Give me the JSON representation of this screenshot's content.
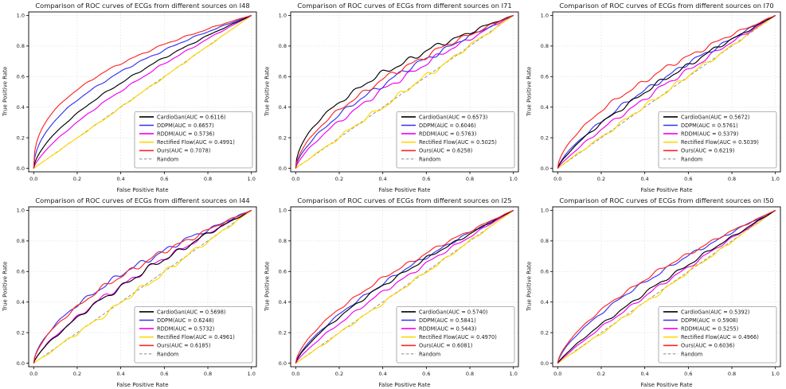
{
  "page": {
    "background": "#ffffff",
    "description": "2x3 grid of ROC curve comparison plots"
  },
  "palette": {
    "cardiogan": "#000000",
    "ddpm": "#3333f0",
    "rddm": "#f000f0",
    "rectified_flow": "#ffd700",
    "ours": "#ff2626",
    "random": "#8a8a8a",
    "grid": "#d0d0d0",
    "spine": "#000000"
  },
  "chart_data": [
    {
      "type": "line",
      "title": "Comparison of ROC curves of ECGs from different sources on I48",
      "xlabel": "False Positive Rate",
      "ylabel": "True Positive Rate",
      "xlim": [
        0.0,
        1.0
      ],
      "ylim": [
        0.0,
        1.0
      ],
      "xticks": [
        "0.0",
        "0.2",
        "0.4",
        "0.6",
        "0.8",
        "1.0"
      ],
      "yticks": [
        "0.0",
        "0.2",
        "0.4",
        "0.6",
        "0.8",
        "1.0"
      ],
      "grid": true,
      "legend_position": "lower right",
      "series": [
        {
          "name": "CardioGan",
          "label": "CardioGan(AUC = 0.6116)",
          "auc": 0.6116,
          "color": "#000000",
          "style": "solid"
        },
        {
          "name": "DDPM",
          "label": "DDPM(AUC = 0.6657)",
          "auc": 0.6657,
          "color": "#3333f0",
          "style": "solid"
        },
        {
          "name": "RDDM",
          "label": "RDDM(AUC = 0.5736)",
          "auc": 0.5736,
          "color": "#f000f0",
          "style": "solid"
        },
        {
          "name": "Rectified Flow",
          "label": "Rectified Flow(AUC = 0.4991)",
          "auc": 0.4991,
          "color": "#ffd700",
          "style": "solid"
        },
        {
          "name": "Ours",
          "label": "Ours(AUC = 0.7078)",
          "auc": 0.7078,
          "color": "#ff2626",
          "style": "solid"
        },
        {
          "name": "Random",
          "label": "Random",
          "auc": 0.5,
          "color": "#8a8a8a",
          "style": "dashed"
        }
      ]
    },
    {
      "type": "line",
      "title": "Comparison of ROC curves of ECGs from different sources on I71",
      "xlabel": "False Positive Rate",
      "ylabel": "True Positive Rate",
      "xlim": [
        0.0,
        1.0
      ],
      "ylim": [
        0.0,
        1.0
      ],
      "xticks": [
        "0.0",
        "0.2",
        "0.4",
        "0.6",
        "0.8",
        "1.0"
      ],
      "yticks": [
        "0.0",
        "0.2",
        "0.4",
        "0.6",
        "0.8",
        "1.0"
      ],
      "grid": true,
      "legend_position": "lower right",
      "series": [
        {
          "name": "CardioGan",
          "label": "CardioGan(AUC = 0.6573)",
          "auc": 0.6573,
          "color": "#000000",
          "style": "solid"
        },
        {
          "name": "DDPM",
          "label": "DDPM(AUC = 0.6046)",
          "auc": 0.6046,
          "color": "#3333f0",
          "style": "solid"
        },
        {
          "name": "RDDM",
          "label": "RDDM(AUC = 0.5763)",
          "auc": 0.5763,
          "color": "#f000f0",
          "style": "solid"
        },
        {
          "name": "Rectified Flow",
          "label": "Rectified Flow(AUC = 0.5025)",
          "auc": 0.5025,
          "color": "#ffd700",
          "style": "solid"
        },
        {
          "name": "Ours",
          "label": "Ours(AUC = 0.6258)",
          "auc": 0.6258,
          "color": "#ff2626",
          "style": "solid"
        },
        {
          "name": "Random",
          "label": "Random",
          "auc": 0.5,
          "color": "#8a8a8a",
          "style": "dashed"
        }
      ]
    },
    {
      "type": "line",
      "title": "Comparison of ROC curves of ECGs from different sources on I70",
      "xlabel": "False Positive Rate",
      "ylabel": "True Positive Rate",
      "xlim": [
        0.0,
        1.0
      ],
      "ylim": [
        0.0,
        1.0
      ],
      "xticks": [
        "0.0",
        "0.2",
        "0.4",
        "0.6",
        "0.8",
        "1.0"
      ],
      "yticks": [
        "0.0",
        "0.2",
        "0.4",
        "0.6",
        "0.8",
        "1.0"
      ],
      "grid": true,
      "legend_position": "lower right",
      "series": [
        {
          "name": "CardioGan",
          "label": "CardioGan(AUC = 0.5672)",
          "auc": 0.5672,
          "color": "#000000",
          "style": "solid"
        },
        {
          "name": "DDPM",
          "label": "DDPM(AUC = 0.5761)",
          "auc": 0.5761,
          "color": "#3333f0",
          "style": "solid"
        },
        {
          "name": "RDDM",
          "label": "RDDM(AUC = 0.5379)",
          "auc": 0.5379,
          "color": "#f000f0",
          "style": "solid"
        },
        {
          "name": "Rectified Flow",
          "label": "Rectified Flow(AUC = 0.5039)",
          "auc": 0.5039,
          "color": "#ffd700",
          "style": "solid"
        },
        {
          "name": "Ours",
          "label": "Ours(AUC = 0.6219)",
          "auc": 0.6219,
          "color": "#ff2626",
          "style": "solid"
        },
        {
          "name": "Random",
          "label": "Random",
          "auc": 0.5,
          "color": "#8a8a8a",
          "style": "dashed"
        }
      ]
    },
    {
      "type": "line",
      "title": "Comparison of ROC curves of ECGs from different sources on I44",
      "xlabel": "False Positive Rate",
      "ylabel": "True Positive Rate",
      "xlim": [
        0.0,
        1.0
      ],
      "ylim": [
        0.0,
        1.0
      ],
      "xticks": [
        "0.0",
        "0.2",
        "0.4",
        "0.6",
        "0.8",
        "1.0"
      ],
      "yticks": [
        "0.0",
        "0.2",
        "0.4",
        "0.6",
        "0.8",
        "1.0"
      ],
      "grid": true,
      "legend_position": "lower right",
      "series": [
        {
          "name": "CardioGan",
          "label": "CardioGan(AUC = 0.5698)",
          "auc": 0.5698,
          "color": "#000000",
          "style": "solid"
        },
        {
          "name": "DDPM",
          "label": "DDPM(AUC = 0.6248)",
          "auc": 0.6248,
          "color": "#3333f0",
          "style": "solid"
        },
        {
          "name": "RDDM",
          "label": "RDDM(AUC = 0.5732)",
          "auc": 0.5732,
          "color": "#f000f0",
          "style": "solid"
        },
        {
          "name": "Rectified Flow",
          "label": "Rectified Flow(AUC = 0.4961)",
          "auc": 0.4961,
          "color": "#ffd700",
          "style": "solid"
        },
        {
          "name": "Ours",
          "label": "Ours(AUC = 0.6185)",
          "auc": 0.6185,
          "color": "#ff2626",
          "style": "solid"
        },
        {
          "name": "Random",
          "label": "Random",
          "auc": 0.5,
          "color": "#8a8a8a",
          "style": "dashed"
        }
      ]
    },
    {
      "type": "line",
      "title": "Comparison of ROC curves of ECGs from different sources on I25",
      "xlabel": "False Positive Rate",
      "ylabel": "True Positive Rate",
      "xlim": [
        0.0,
        1.0
      ],
      "ylim": [
        0.0,
        1.0
      ],
      "xticks": [
        "0.0",
        "0.2",
        "0.4",
        "0.6",
        "0.8",
        "1.0"
      ],
      "yticks": [
        "0.0",
        "0.2",
        "0.4",
        "0.6",
        "0.8",
        "1.0"
      ],
      "grid": true,
      "legend_position": "lower right",
      "series": [
        {
          "name": "CardioGan",
          "label": "CardioGan(AUC = 0.5740)",
          "auc": 0.574,
          "color": "#000000",
          "style": "solid"
        },
        {
          "name": "DDPM",
          "label": "DDPM(AUC = 0.5841)",
          "auc": 0.5841,
          "color": "#3333f0",
          "style": "solid"
        },
        {
          "name": "RDDM",
          "label": "RDDM(AUC = 0.5443)",
          "auc": 0.5443,
          "color": "#f000f0",
          "style": "solid"
        },
        {
          "name": "Rectified Flow",
          "label": "Rectified Flow(AUC = 0.4970)",
          "auc": 0.497,
          "color": "#ffd700",
          "style": "solid"
        },
        {
          "name": "Ours",
          "label": "Ours(AUC = 0.6081)",
          "auc": 0.6081,
          "color": "#ff2626",
          "style": "solid"
        },
        {
          "name": "Random",
          "label": "Random",
          "auc": 0.5,
          "color": "#8a8a8a",
          "style": "dashed"
        }
      ]
    },
    {
      "type": "line",
      "title": "Comparison of ROC curves of ECGs from different sources on I50",
      "xlabel": "False Positive Rate",
      "ylabel": "True Positive Rate",
      "xlim": [
        0.0,
        1.0
      ],
      "ylim": [
        0.0,
        1.0
      ],
      "xticks": [
        "0.0",
        "0.2",
        "0.4",
        "0.6",
        "0.8",
        "1.0"
      ],
      "yticks": [
        "0.0",
        "0.2",
        "0.4",
        "0.6",
        "0.8",
        "1.0"
      ],
      "grid": true,
      "legend_position": "lower right",
      "series": [
        {
          "name": "CardioGan",
          "label": "CardioGan(AUC = 0.5392)",
          "auc": 0.5392,
          "color": "#000000",
          "style": "solid"
        },
        {
          "name": "DDPM",
          "label": "DDPM(AUC = 0.5908)",
          "auc": 0.5908,
          "color": "#3333f0",
          "style": "solid"
        },
        {
          "name": "RDDM",
          "label": "RDDM(AUC = 0.5255)",
          "auc": 0.5255,
          "color": "#f000f0",
          "style": "solid"
        },
        {
          "name": "Rectified Flow",
          "label": "Rectified Flow(AUC = 0.4966)",
          "auc": 0.4966,
          "color": "#ffd700",
          "style": "solid"
        },
        {
          "name": "Ours",
          "label": "Ours(AUC = 0.6036)",
          "auc": 0.6036,
          "color": "#ff2626",
          "style": "solid"
        },
        {
          "name": "Random",
          "label": "Random",
          "auc": 0.5,
          "color": "#8a8a8a",
          "style": "dashed"
        }
      ]
    }
  ]
}
